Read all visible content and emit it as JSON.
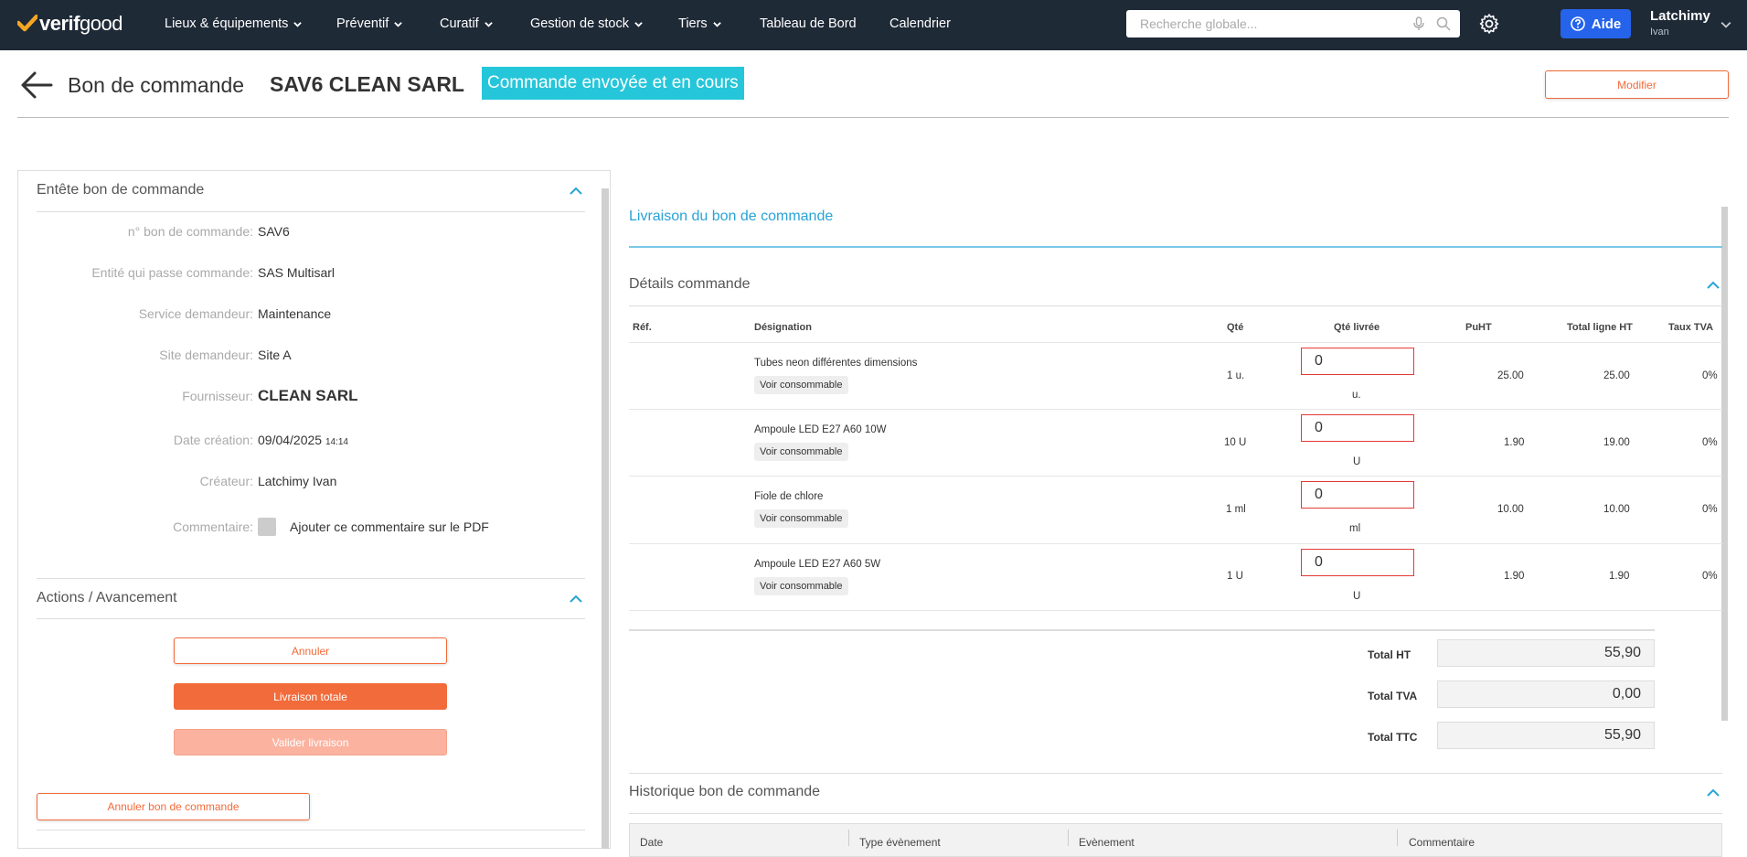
{
  "nav": {
    "logo_bold": "verif",
    "logo_light": "good",
    "items": [
      {
        "label": "Lieux & équipements",
        "has_chevron": true
      },
      {
        "label": "Préventif",
        "has_chevron": true
      },
      {
        "label": "Curatif",
        "has_chevron": true
      },
      {
        "label": "Gestion de stock",
        "has_chevron": true
      },
      {
        "label": "Tiers",
        "has_chevron": true
      },
      {
        "label": "Tableau de Bord",
        "has_chevron": false
      },
      {
        "label": "Calendrier",
        "has_chevron": false
      }
    ],
    "search_placeholder": "Recherche globale...",
    "help_label": "Aide",
    "user_name": "Latchimy",
    "user_sub": "Ivan"
  },
  "header": {
    "title": "Bon de commande",
    "order_title": "SAV6 CLEAN SARL",
    "status": "Commande envoyée et en cours",
    "edit_label": "Modifier"
  },
  "entete": {
    "section_title": "Entête bon de commande",
    "fields": [
      {
        "label": "n° bon de commande:",
        "value": "SAV6"
      },
      {
        "label": "Entité qui passe commande:",
        "value": "SAS Multisarl"
      },
      {
        "label": "Service demandeur:",
        "value": "Maintenance"
      },
      {
        "label": "Site demandeur:",
        "value": "Site A"
      },
      {
        "label": "Fournisseur:",
        "value": "CLEAN SARL"
      },
      {
        "label": "Date création:",
        "value": "09/04/2025",
        "time": "14:14"
      },
      {
        "label": "Créateur:",
        "value": "Latchimy Ivan"
      },
      {
        "label": "Commentaire:",
        "value": ""
      }
    ],
    "comment_checkbox_label": "Ajouter ce commentaire sur le PDF"
  },
  "actions": {
    "section_title": "Actions / Avancement",
    "cancel_label": "Annuler",
    "full_delivery_label": "Livraison totale",
    "validate_label": "Valider livraison",
    "cancel_order_label": "Annuler bon de commande"
  },
  "delivery": {
    "tab_label": "Livraison du bon de commande",
    "details_title": "Détails commande",
    "columns": [
      "Réf.",
      "Désignation",
      "Qté",
      "Qté livrée",
      "PuHT",
      "Total ligne HT",
      "Taux TVA"
    ],
    "view_label": "Voir consommable",
    "rows": [
      {
        "ref": "",
        "designation": "Tubes neon différentes dimensions",
        "qty": "1 u.",
        "delivered": "0",
        "unit": "u.",
        "puht": "25.00",
        "total": "25.00",
        "tva": "0%"
      },
      {
        "ref": "",
        "designation": "Ampoule LED E27 A60 10W",
        "qty": "10 U",
        "delivered": "0",
        "unit": "U",
        "puht": "1.90",
        "total": "19.00",
        "tva": "0%"
      },
      {
        "ref": "",
        "designation": "Fiole de chlore",
        "qty": "1 ml",
        "delivered": "0",
        "unit": "ml",
        "puht": "10.00",
        "total": "10.00",
        "tva": "0%"
      },
      {
        "ref": "",
        "designation": "Ampoule LED E27 A60 5W",
        "qty": "1 U",
        "delivered": "0",
        "unit": "U",
        "puht": "1.90",
        "total": "1.90",
        "tva": "0%"
      }
    ],
    "totals": [
      {
        "label": "Total HT",
        "value": "55,90"
      },
      {
        "label": "Total TVA",
        "value": "0,00"
      },
      {
        "label": "Total TTC",
        "value": "55,90"
      }
    ]
  },
  "history": {
    "section_title": "Historique bon de commande",
    "columns": [
      "Date",
      "Type évènement",
      "Evènement",
      "Commentaire"
    ]
  },
  "colors": {
    "nav_bg": "#1f2a37",
    "accent_orange": "#f26b3a",
    "status_cyan": "#26c6da",
    "link_blue": "#29a3d6",
    "help_blue": "#2563eb",
    "error_red": "#e53935"
  }
}
